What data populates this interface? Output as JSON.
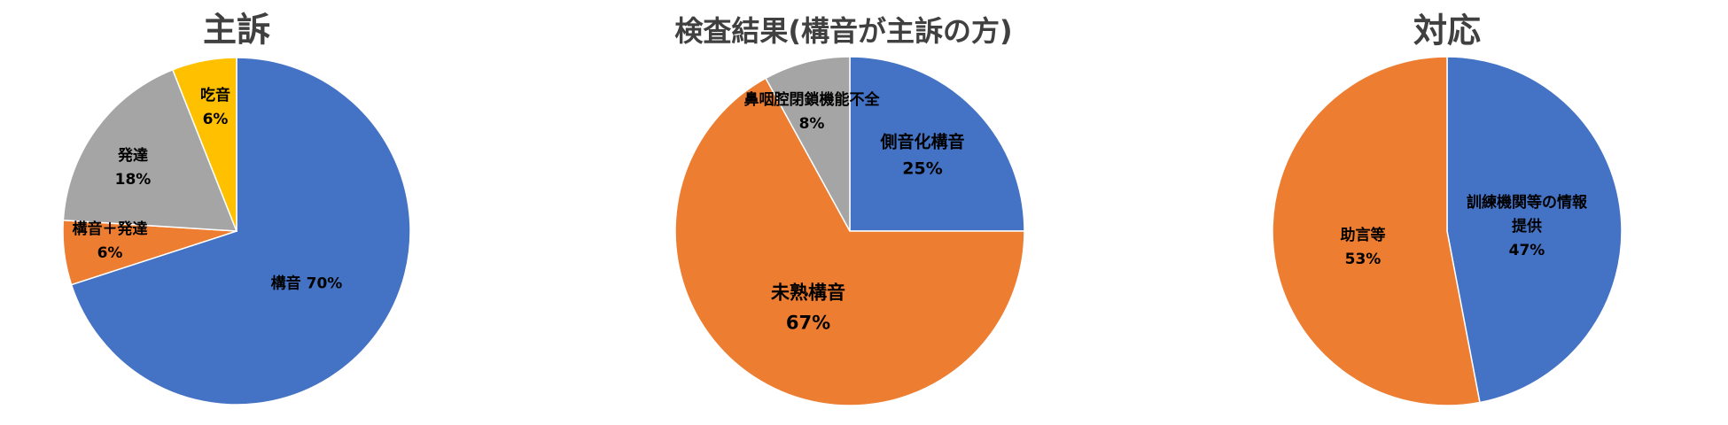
{
  "chart_data": [
    {
      "type": "pie",
      "title": "主訴",
      "categories": [
        "構音",
        "構音＋発達",
        "発達",
        "吃音"
      ],
      "values": [
        70,
        6,
        18,
        6
      ],
      "value_labels": [
        "70%",
        "6%",
        "18%",
        "6%"
      ],
      "colors": [
        "#4472c4",
        "#ed7d31",
        "#a5a5a5",
        "#ffc000"
      ]
    },
    {
      "type": "pie",
      "title": "検査結果(構音が主訴の方)",
      "categories": [
        "側音化構音",
        "未熟構音",
        "鼻咽腔閉鎖機能不全"
      ],
      "values": [
        25,
        67,
        8
      ],
      "value_labels": [
        "25%",
        "67%",
        "8%"
      ],
      "colors": [
        "#4472c4",
        "#ed7d31",
        "#a5a5a5"
      ]
    },
    {
      "type": "pie",
      "title": "対応",
      "categories": [
        "訓練機関等の情報提供",
        "助言等"
      ],
      "values": [
        47,
        53
      ],
      "value_labels": [
        "47%",
        "53%"
      ],
      "colors": [
        "#4472c4",
        "#ed7d31"
      ]
    }
  ]
}
